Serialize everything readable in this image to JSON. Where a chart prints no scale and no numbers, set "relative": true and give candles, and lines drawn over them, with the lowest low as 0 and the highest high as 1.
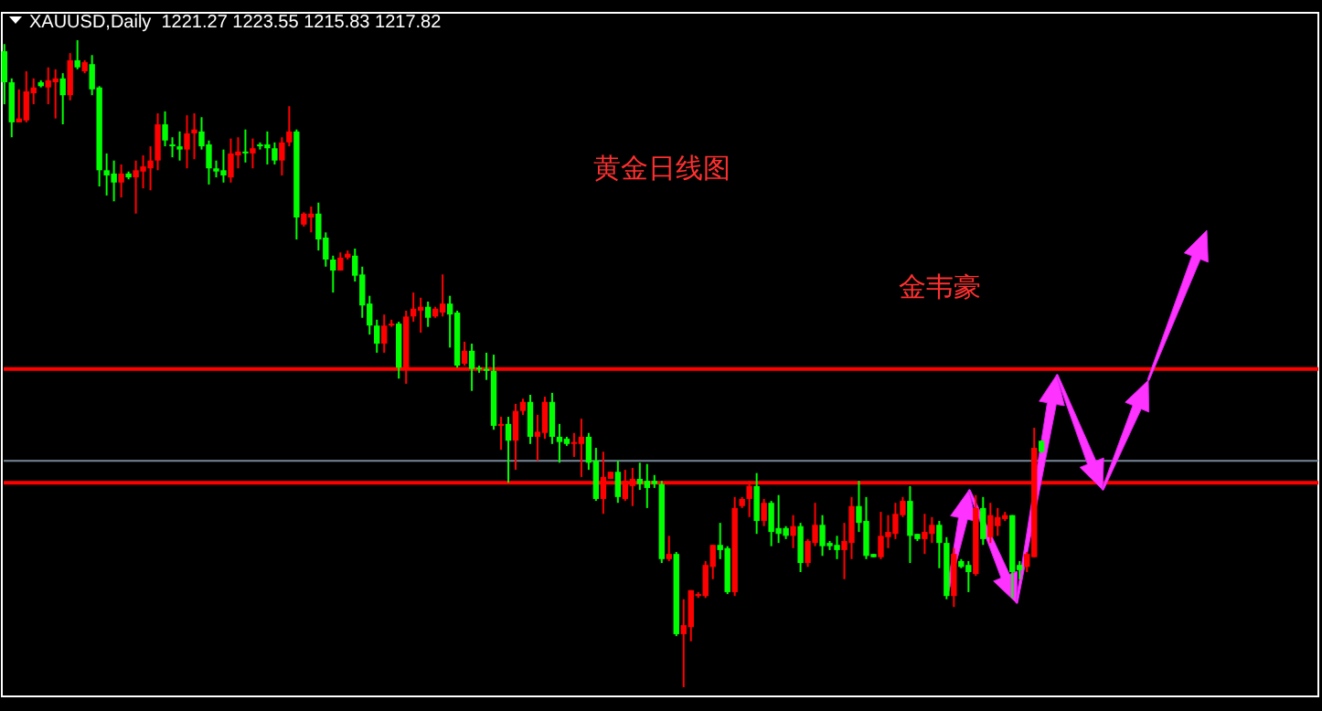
{
  "chart_data": {
    "type": "candlestick",
    "title": "XAUUSD,Daily  1221.27 1223.55 1215.83 1217.82",
    "relative": true,
    "annotations": [
      "黄金日线图",
      "金韦豪"
    ],
    "colors": [
      "#00ff00",
      "#00ff00",
      "#ff0000",
      "#ff0000",
      "#ff0000",
      "#00ff00",
      "#ff0000",
      "#ff0000",
      "#00ff00",
      "#ff0000",
      "#00ff00",
      "#ff0000",
      "#00ff00",
      "#00ff00",
      "#00ff00",
      "#00ff00",
      "#ff0000",
      "#00ff00",
      "#ff0000",
      "#ff0000",
      "#ff0000",
      "#ff0000",
      "#00ff00",
      "#00ff00",
      "#00ff00",
      "#ff0000",
      "#ff0000",
      "#00ff00",
      "#00ff00",
      "#00ff00",
      "#00ff00",
      "#ff0000",
      "#ff0000",
      "#00ff00",
      "#ff0000",
      "#00ff00",
      "#00ff00",
      "#00ff00",
      "#ff0000",
      "#ff0000",
      "#00ff00",
      "#ff0000",
      "#ff0000",
      "#00ff00",
      "#00ff00",
      "#00ff00",
      "#ff0000",
      "#ff0000",
      "#00ff00",
      "#00ff00",
      "#00ff00",
      "#00ff00",
      "#ff0000",
      "#ff0000",
      "#00ff00",
      "#ff0000",
      "#ff0000",
      "#ff0000",
      "#00ff00",
      "#ff0000",
      "#ff0000",
      "#00ff00",
      "#00ff00",
      "#ff0000",
      "#00ff00",
      "#00ff00",
      "#00ff00",
      "#00ff00",
      "#ff0000",
      "#00ff00",
      "#ff0000",
      "#ff0000",
      "#00ff00",
      "#ff0000",
      "#ff0000",
      "#00ff00",
      "#00ff00",
      "#00ff00",
      "#ff0000",
      "#ff0000",
      "#00ff00",
      "#00ff00",
      "#ff0000",
      "#ff0000",
      "#00ff00",
      "#ff0000",
      "#ff0000",
      "#00ff00",
      "#00ff00",
      "#00ff00",
      "#00ff00",
      "#ff0000",
      "#00ff00",
      "#ff0000",
      "#ff0000",
      "#ff0000",
      "#ff0000",
      "#ff0000",
      "#00ff00",
      "#00ff00",
      "#ff0000",
      "#ff0000",
      "#ff0000",
      "#00ff00",
      "#ff0000",
      "#00ff00",
      "#00ff00",
      "#00ff00",
      "#ff0000",
      "#00ff00",
      "#ff0000",
      "#ff0000",
      "#00ff00",
      "#00ff00",
      "#00ff00",
      "#ff0000",
      "#ff0000",
      "#00ff00",
      "#00ff00",
      "#00ff00",
      "#ff0000",
      "#ff0000",
      "#ff0000",
      "#ff0000",
      "#00ff00",
      "#00ff00",
      "#ff0000",
      "#ff0000",
      "#00ff00",
      "#00ff00",
      "#ff0000",
      "#00ff00",
      "#00ff00",
      "#ff0000",
      "#00ff00",
      "#ff0000",
      "#ff0000",
      "#ff0000",
      "#00ff00",
      "#00ff00",
      "#ff0000",
      "#ff0000",
      "#00ff00"
    ],
    "ref_lines": [
      {
        "axis": "y",
        "value": 0.492,
        "color": "#ff0000"
      },
      {
        "axis": "y",
        "value": 0.35,
        "color": "#778899"
      },
      {
        "axis": "y",
        "value": 0.316,
        "color": "#ff0000"
      }
    ],
    "categories": [
      null,
      null,
      null,
      null,
      null,
      null,
      null,
      null,
      null,
      null,
      null,
      null,
      null,
      null,
      null,
      null,
      null,
      null,
      null,
      null,
      null,
      null,
      null,
      null,
      null,
      null,
      null,
      null,
      null,
      null,
      null,
      null,
      null,
      null,
      null,
      null,
      null,
      null,
      null,
      null,
      null,
      null,
      null,
      null,
      null,
      null,
      null,
      null,
      null,
      null,
      null,
      null,
      null,
      null,
      null,
      null,
      null,
      null,
      null,
      null,
      null,
      null,
      null,
      null,
      null,
      null,
      null,
      null,
      null,
      null,
      null,
      null,
      null,
      null,
      null,
      null,
      null,
      null,
      null,
      null,
      null,
      null,
      null,
      null,
      null,
      null,
      null,
      null,
      null,
      null,
      null,
      null,
      null,
      null,
      null,
      null,
      null,
      null,
      null,
      null,
      null,
      null,
      null,
      null,
      null,
      null,
      null,
      null,
      null,
      null,
      null,
      null,
      null,
      null,
      null,
      null,
      null,
      null,
      null,
      null,
      null,
      null,
      null,
      null,
      null,
      null,
      null,
      null,
      null,
      null,
      null,
      null,
      null,
      null,
      null,
      null,
      null,
      null,
      null,
      null,
      null,
      null,
      null
    ],
    "ohlc": [
      [
        0.983,
        0.994,
        0.901,
        0.935
      ],
      [
        0.935,
        0.941,
        0.85,
        0.873
      ],
      [
        0.873,
        0.924,
        0.873,
        0.879
      ],
      [
        0.876,
        0.952,
        0.873,
        0.921
      ],
      [
        0.918,
        0.941,
        0.901,
        0.927
      ],
      [
        0.935,
        0.938,
        0.927,
        0.929
      ],
      [
        0.927,
        0.958,
        0.901,
        0.938
      ],
      [
        0.935,
        0.955,
        0.879,
        0.941
      ],
      [
        0.941,
        0.949,
        0.87,
        0.915
      ],
      [
        0.915,
        0.98,
        0.907,
        0.969
      ],
      [
        0.969,
        1,
        0.955,
        0.958
      ],
      [
        0.952,
        0.969,
        0.949,
        0.966
      ],
      [
        0.963,
        0.977,
        0.915,
        0.924
      ],
      [
        0.927,
        0.929,
        0.774,
        0.799
      ],
      [
        0.799,
        0.825,
        0.76,
        0.791
      ],
      [
        0.794,
        0.814,
        0.751,
        0.78
      ],
      [
        0.78,
        0.808,
        0.757,
        0.794
      ],
      [
        0.794,
        0.797,
        0.785,
        0.788
      ],
      [
        0.788,
        0.814,
        0.732,
        0.799
      ],
      [
        0.797,
        0.822,
        0.771,
        0.805
      ],
      [
        0.802,
        0.836,
        0.768,
        0.814
      ],
      [
        0.814,
        0.887,
        0.799,
        0.87
      ],
      [
        0.87,
        0.89,
        0.836,
        0.845
      ],
      [
        0.839,
        0.85,
        0.819,
        0.836
      ],
      [
        0.836,
        0.859,
        0.814,
        0.831
      ],
      [
        0.831,
        0.884,
        0.802,
        0.856
      ],
      [
        0.856,
        0.887,
        0.816,
        0.862
      ],
      [
        0.859,
        0.881,
        0.831,
        0.836
      ],
      [
        0.839,
        0.845,
        0.777,
        0.802
      ],
      [
        0.802,
        0.814,
        0.788,
        0.797
      ],
      [
        0.799,
        0.831,
        0.78,
        0.791
      ],
      [
        0.788,
        0.848,
        0.78,
        0.825
      ],
      [
        0.822,
        0.85,
        0.802,
        0.828
      ],
      [
        0.828,
        0.862,
        0.811,
        0.825
      ],
      [
        0.825,
        0.848,
        0.802,
        0.833
      ],
      [
        0.839,
        0.842,
        0.831,
        0.836
      ],
      [
        0.839,
        0.859,
        0.808,
        0.833
      ],
      [
        0.833,
        0.842,
        0.808,
        0.814
      ],
      [
        0.814,
        0.85,
        0.791,
        0.842
      ],
      [
        0.842,
        0.898,
        0.836,
        0.859
      ],
      [
        0.859,
        0.862,
        0.692,
        0.726
      ],
      [
        0.715,
        0.734,
        0.712,
        0.732
      ],
      [
        0.726,
        0.743,
        0.703,
        0.732
      ],
      [
        0.732,
        0.749,
        0.675,
        0.692
      ],
      [
        0.695,
        0.703,
        0.65,
        0.661
      ],
      [
        0.661,
        0.667,
        0.61,
        0.644
      ],
      [
        0.644,
        0.672,
        0.644,
        0.664
      ],
      [
        0.664,
        0.675,
        0.661,
        0.67
      ],
      [
        0.667,
        0.678,
        0.627,
        0.636
      ],
      [
        0.638,
        0.65,
        0.571,
        0.59
      ],
      [
        0.593,
        0.605,
        0.545,
        0.559
      ],
      [
        0.559,
        0.568,
        0.517,
        0.531
      ],
      [
        0.531,
        0.576,
        0.517,
        0.559
      ],
      [
        0.559,
        0.568,
        0.557,
        0.562
      ],
      [
        0.562,
        0.565,
        0.477,
        0.494
      ],
      [
        0.492,
        0.582,
        0.469,
        0.573
      ],
      [
        0.573,
        0.61,
        0.565,
        0.585
      ],
      [
        0.582,
        0.602,
        0.548,
        0.588
      ],
      [
        0.588,
        0.596,
        0.557,
        0.571
      ],
      [
        0.573,
        0.588,
        0.571,
        0.585
      ],
      [
        0.579,
        0.638,
        0.573,
        0.593
      ],
      [
        0.593,
        0.605,
        0.525,
        0.576
      ],
      [
        0.579,
        0.582,
        0.494,
        0.497
      ],
      [
        0.5,
        0.534,
        0.497,
        0.52
      ],
      [
        0.52,
        0.531,
        0.458,
        0.492
      ],
      [
        0.494,
        0.497,
        0.486,
        0.492
      ],
      [
        0.492,
        0.517,
        0.475,
        0.489
      ],
      [
        0.489,
        0.514,
        0.398,
        0.404
      ],
      [
        0.404,
        0.418,
        0.367,
        0.407
      ],
      [
        0.407,
        0.418,
        0.316,
        0.381
      ],
      [
        0.381,
        0.438,
        0.336,
        0.427
      ],
      [
        0.427,
        0.446,
        0.421,
        0.441
      ],
      [
        0.441,
        0.452,
        0.376,
        0.387
      ],
      [
        0.387,
        0.421,
        0.35,
        0.395
      ],
      [
        0.393,
        0.449,
        0.384,
        0.441
      ],
      [
        0.441,
        0.455,
        0.376,
        0.387
      ],
      [
        0.387,
        0.407,
        0.347,
        0.379
      ],
      [
        0.384,
        0.387,
        0.373,
        0.376
      ],
      [
        0.376,
        0.393,
        0.356,
        0.379
      ],
      [
        0.376,
        0.415,
        0.325,
        0.387
      ],
      [
        0.387,
        0.393,
        0.336,
        0.347
      ],
      [
        0.35,
        0.37,
        0.288,
        0.291
      ],
      [
        0.291,
        0.364,
        0.268,
        0.325
      ],
      [
        0.322,
        0.333,
        0.322,
        0.333
      ],
      [
        0.333,
        0.35,
        0.285,
        0.294
      ],
      [
        0.291,
        0.336,
        0.288,
        0.319
      ],
      [
        0.311,
        0.339,
        0.28,
        0.322
      ],
      [
        0.322,
        0.347,
        0.305,
        0.314
      ],
      [
        0.319,
        0.345,
        0.277,
        0.308
      ],
      [
        0.319,
        0.328,
        0.308,
        0.314
      ],
      [
        0.314,
        0.319,
        0.192,
        0.198
      ],
      [
        0.198,
        0.234,
        0.195,
        0.206
      ],
      [
        0.206,
        0.209,
        0.079,
        0.082
      ],
      [
        0.082,
        0.136,
        0,
        0.096
      ],
      [
        0.093,
        0.15,
        0.071,
        0.15
      ],
      [
        0.141,
        0.147,
        0.138,
        0.144
      ],
      [
        0.141,
        0.195,
        0.138,
        0.189
      ],
      [
        0.186,
        0.22,
        0.167,
        0.22
      ],
      [
        0.22,
        0.254,
        0.198,
        0.212
      ],
      [
        0.215,
        0.218,
        0.144,
        0.147
      ],
      [
        0.147,
        0.294,
        0.141,
        0.277
      ],
      [
        0.28,
        0.294,
        0.277,
        0.291
      ],
      [
        0.291,
        0.319,
        0.263,
        0.311
      ],
      [
        0.311,
        0.331,
        0.237,
        0.257
      ],
      [
        0.257,
        0.291,
        0.249,
        0.285
      ],
      [
        0.285,
        0.288,
        0.218,
        0.24
      ],
      [
        0.246,
        0.297,
        0.223,
        0.237
      ],
      [
        0.246,
        0.249,
        0.229,
        0.234
      ],
      [
        0.234,
        0.266,
        0.215,
        0.249
      ],
      [
        0.249,
        0.254,
        0.178,
        0.192
      ],
      [
        0.192,
        0.229,
        0.186,
        0.226
      ],
      [
        0.223,
        0.285,
        0.218,
        0.251
      ],
      [
        0.251,
        0.266,
        0.203,
        0.218
      ],
      [
        0.223,
        0.226,
        0.212,
        0.218
      ],
      [
        0.22,
        0.234,
        0.198,
        0.212
      ],
      [
        0.212,
        0.254,
        0.167,
        0.226
      ],
      [
        0.223,
        0.294,
        0.198,
        0.28
      ],
      [
        0.28,
        0.319,
        0.24,
        0.254
      ],
      [
        0.257,
        0.294,
        0.198,
        0.203
      ],
      [
        0.206,
        0.206,
        0.201,
        0.201
      ],
      [
        0.201,
        0.271,
        0.198,
        0.234
      ],
      [
        0.232,
        0.266,
        0.215,
        0.24
      ],
      [
        0.237,
        0.285,
        0.229,
        0.268
      ],
      [
        0.266,
        0.294,
        0.263,
        0.288
      ],
      [
        0.288,
        0.311,
        0.192,
        0.234
      ],
      [
        0.237,
        0.237,
        0.226,
        0.229
      ],
      [
        0.229,
        0.268,
        0.206,
        0.24
      ],
      [
        0.237,
        0.263,
        0.223,
        0.251
      ],
      [
        0.251,
        0.257,
        0.184,
        0.223
      ],
      [
        0.223,
        0.232,
        0.136,
        0.141
      ],
      [
        0.141,
        0.215,
        0.124,
        0.206
      ],
      [
        0.195,
        0.198,
        0.184,
        0.186
      ],
      [
        0.189,
        0.195,
        0.147,
        0.178
      ],
      [
        0.175,
        0.297,
        0.172,
        0.277
      ],
      [
        0.277,
        0.294,
        0.22,
        0.229
      ],
      [
        0.232,
        0.285,
        0.223,
        0.266
      ],
      [
        0.249,
        0.277,
        0.234,
        0.263
      ],
      [
        0.26,
        0.271,
        0.257,
        0.266
      ],
      [
        0.266,
        0.266,
        0.138,
        0.178
      ],
      [
        0.189,
        0.195,
        0.167,
        0.181
      ],
      [
        0.186,
        0.209,
        0.178,
        0.206
      ],
      [
        0.201,
        0.401,
        0.201,
        0.37
      ],
      [
        0.381,
        0.381,
        0.362,
        0.364
      ]
    ]
  }
}
